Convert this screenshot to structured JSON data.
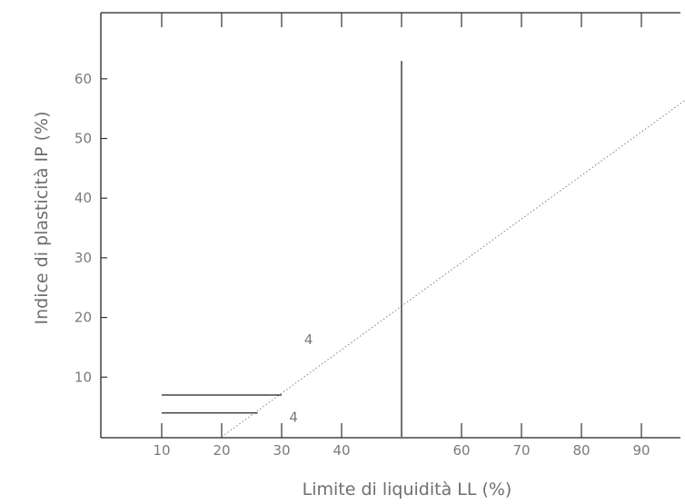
{
  "chart_data": {
    "type": "line",
    "title": "",
    "xlabel": "Limite di liquidità  LL (%)",
    "ylabel": "Indice di plasticità  IP  (%)",
    "xlim": [
      0,
      100
    ],
    "ylim": [
      0,
      70
    ],
    "x_ticks": [
      10,
      20,
      30,
      40,
      60,
      70,
      80,
      90
    ],
    "y_ticks": [
      10,
      20,
      30,
      40,
      50,
      60
    ],
    "x_tick_labels": [
      "10",
      "20",
      "30",
      "40",
      "60",
      "70",
      "80",
      "90"
    ],
    "y_tick_labels": [
      "10",
      "20",
      "30",
      "40",
      "50",
      "60"
    ],
    "grid": false,
    "series": [
      {
        "style": "dotted",
        "x": [
          20,
          100
        ],
        "y": [
          0,
          58.4
        ]
      },
      {
        "style": "solid",
        "x": [
          50,
          50
        ],
        "y": [
          0,
          63
        ]
      },
      {
        "style": "solid",
        "x": [
          10,
          30
        ],
        "y": [
          7,
          7
        ]
      },
      {
        "style": "solid",
        "x": [
          10,
          26
        ],
        "y": [
          4,
          4
        ]
      }
    ],
    "annotations": [
      {
        "text": "4",
        "x": 34.5,
        "y": 15.5
      },
      {
        "text": "4",
        "x": 32,
        "y": 2.5
      }
    ]
  }
}
